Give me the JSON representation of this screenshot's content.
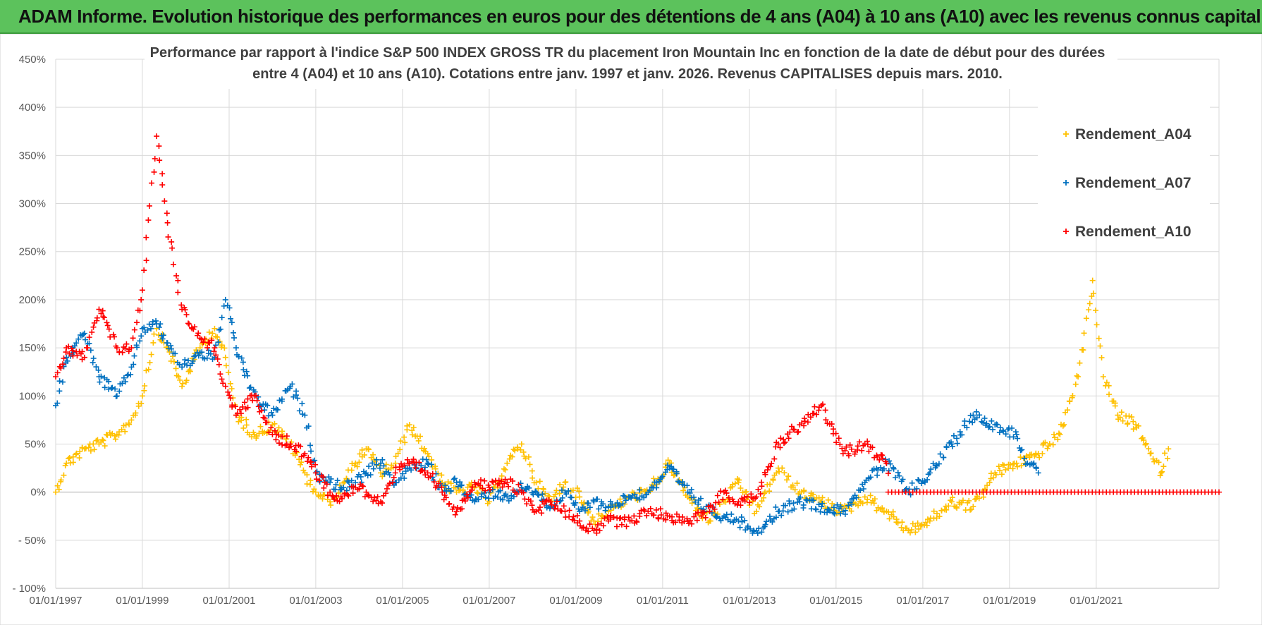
{
  "header": {
    "title": "ADAM Informe. Evolution historique des performances en euros pour des détentions de 4 ans (A04) à 10 ans (A10) avec les revenus connus capitalisés"
  },
  "chart_data": {
    "type": "scatter",
    "title_lines": [
      "Performance par rapport à l'indice S&P 500 INDEX GROSS TR  du placement Iron Mountain Inc en fonction de la date de début pour des durées",
      "entre 4 (A04) et 10 ans (A10). Cotations entre janv. 1997 et janv. 2026. Revenus CAPITALISES depuis mars. 2010."
    ],
    "xlabel": "",
    "ylabel": "",
    "x_ticks": [
      "01/01/1997",
      "01/01/1999",
      "01/01/2001",
      "01/01/2003",
      "01/01/2005",
      "01/01/2007",
      "01/01/2009",
      "01/01/2011",
      "01/01/2013",
      "01/01/2015",
      "01/01/2017",
      "01/01/2019",
      "01/01/2021"
    ],
    "xlim": [
      "1997-01-01",
      "2023-11-01"
    ],
    "y_ticks": [
      "450%",
      "400%",
      "350%",
      "300%",
      "250%",
      "200%",
      "150%",
      "100%",
      "50%",
      "0%",
      "- 50%",
      "- 100%"
    ],
    "ylim": [
      -100,
      450
    ],
    "grid": true,
    "legend_position": "top-right",
    "marker": "+",
    "series": [
      {
        "name": "Rendement_A04",
        "color": "#FFC000",
        "points": [
          [
            "1997-01-01",
            0
          ],
          [
            "1997-04-01",
            30
          ],
          [
            "1997-09-01",
            45
          ],
          [
            "1998-01-01",
            50
          ],
          [
            "1998-06-01",
            60
          ],
          [
            "1998-10-01",
            75
          ],
          [
            "1999-01-01",
            100
          ],
          [
            "1999-05-01",
            170
          ],
          [
            "1999-08-01",
            150
          ],
          [
            "1999-12-01",
            110
          ],
          [
            "2000-05-01",
            150
          ],
          [
            "2000-09-01",
            170
          ],
          [
            "2000-12-01",
            140
          ],
          [
            "2001-03-01",
            80
          ],
          [
            "2001-08-01",
            60
          ],
          [
            "2002-01-01",
            70
          ],
          [
            "2002-06-01",
            50
          ],
          [
            "2002-10-01",
            20
          ],
          [
            "2003-01-01",
            0
          ],
          [
            "2003-05-01",
            -10
          ],
          [
            "2003-08-01",
            5
          ],
          [
            "2003-12-01",
            30
          ],
          [
            "2004-03-01",
            45
          ],
          [
            "2004-07-01",
            20
          ],
          [
            "2004-11-01",
            30
          ],
          [
            "2005-03-01",
            70
          ],
          [
            "2005-08-01",
            40
          ],
          [
            "2005-12-01",
            10
          ],
          [
            "2006-04-01",
            0
          ],
          [
            "2006-09-01",
            5
          ],
          [
            "2007-01-01",
            -10
          ],
          [
            "2007-06-01",
            30
          ],
          [
            "2007-10-01",
            50
          ],
          [
            "2008-02-01",
            10
          ],
          [
            "2008-06-01",
            -10
          ],
          [
            "2008-10-01",
            10
          ],
          [
            "2009-02-01",
            -5
          ],
          [
            "2009-06-01",
            -30
          ],
          [
            "2009-10-01",
            -20
          ],
          [
            "2010-04-01",
            -5
          ],
          [
            "2010-09-01",
            0
          ],
          [
            "2011-03-01",
            30
          ],
          [
            "2011-08-01",
            -5
          ],
          [
            "2012-02-01",
            -30
          ],
          [
            "2012-06-01",
            -10
          ],
          [
            "2012-10-01",
            10
          ],
          [
            "2013-03-01",
            -20
          ],
          [
            "2013-09-01",
            25
          ],
          [
            "2014-03-01",
            0
          ],
          [
            "2014-09-01",
            -10
          ],
          [
            "2015-03-01",
            -20
          ],
          [
            "2015-09-01",
            -5
          ],
          [
            "2016-03-01",
            -20
          ],
          [
            "2016-09-01",
            -40
          ],
          [
            "2017-03-01",
            -30
          ],
          [
            "2017-09-01",
            -10
          ],
          [
            "2018-03-01",
            -15
          ],
          [
            "2018-09-01",
            20
          ],
          [
            "2019-03-01",
            30
          ],
          [
            "2019-09-01",
            40
          ],
          [
            "2020-03-01",
            60
          ],
          [
            "2020-08-01",
            120
          ],
          [
            "2020-12-01",
            220
          ],
          [
            "2021-03-01",
            120
          ],
          [
            "2021-07-01",
            80
          ],
          [
            "2021-12-01",
            70
          ],
          [
            "2022-04-01",
            40
          ],
          [
            "2022-07-01",
            20
          ],
          [
            "2022-09-01",
            45
          ]
        ]
      },
      {
        "name": "Rendement_A07",
        "color": "#0070C0",
        "points": [
          [
            "1997-01-01",
            90
          ],
          [
            "1997-04-01",
            140
          ],
          [
            "1997-09-01",
            165
          ],
          [
            "1998-01-01",
            120
          ],
          [
            "1998-06-01",
            100
          ],
          [
            "1998-10-01",
            130
          ],
          [
            "1999-01-01",
            170
          ],
          [
            "1999-05-01",
            175
          ],
          [
            "1999-08-01",
            155
          ],
          [
            "1999-12-01",
            130
          ],
          [
            "2000-05-01",
            145
          ],
          [
            "2000-09-01",
            140
          ],
          [
            "2000-12-01",
            200
          ],
          [
            "2001-03-01",
            150
          ],
          [
            "2001-08-01",
            100
          ],
          [
            "2002-01-01",
            80
          ],
          [
            "2002-06-01",
            110
          ],
          [
            "2002-10-01",
            80
          ],
          [
            "2003-01-01",
            20
          ],
          [
            "2003-05-01",
            10
          ],
          [
            "2003-08-01",
            5
          ],
          [
            "2003-12-01",
            10
          ],
          [
            "2004-03-01",
            20
          ],
          [
            "2004-07-01",
            30
          ],
          [
            "2004-11-01",
            10
          ],
          [
            "2005-03-01",
            25
          ],
          [
            "2005-08-01",
            30
          ],
          [
            "2005-12-01",
            0
          ],
          [
            "2006-04-01",
            10
          ],
          [
            "2006-09-01",
            -10
          ],
          [
            "2007-01-01",
            0
          ],
          [
            "2007-06-01",
            -5
          ],
          [
            "2007-10-01",
            5
          ],
          [
            "2008-02-01",
            0
          ],
          [
            "2008-06-01",
            -15
          ],
          [
            "2008-10-01",
            0
          ],
          [
            "2009-02-01",
            -20
          ],
          [
            "2009-06-01",
            -10
          ],
          [
            "2009-10-01",
            -15
          ],
          [
            "2010-04-01",
            -5
          ],
          [
            "2010-09-01",
            0
          ],
          [
            "2011-03-01",
            25
          ],
          [
            "2011-08-01",
            0
          ],
          [
            "2012-02-01",
            -20
          ],
          [
            "2012-06-01",
            -25
          ],
          [
            "2012-10-01",
            -30
          ],
          [
            "2013-03-01",
            -40
          ],
          [
            "2013-09-01",
            -20
          ],
          [
            "2014-03-01",
            -10
          ],
          [
            "2014-09-01",
            -15
          ],
          [
            "2015-03-01",
            -20
          ],
          [
            "2015-09-01",
            10
          ],
          [
            "2016-03-01",
            30
          ],
          [
            "2016-09-01",
            0
          ],
          [
            "2017-03-01",
            20
          ],
          [
            "2017-09-01",
            50
          ],
          [
            "2018-03-01",
            80
          ],
          [
            "2018-09-01",
            70
          ],
          [
            "2019-03-01",
            60
          ],
          [
            "2019-06-01",
            30
          ],
          [
            "2019-09-01",
            20
          ]
        ]
      },
      {
        "name": "Rendement_A10",
        "color": "#FF0000",
        "points": [
          [
            "1997-01-01",
            120
          ],
          [
            "1997-04-01",
            150
          ],
          [
            "1997-09-01",
            140
          ],
          [
            "1998-01-01",
            190
          ],
          [
            "1998-06-01",
            150
          ],
          [
            "1998-10-01",
            150
          ],
          [
            "1999-01-01",
            210
          ],
          [
            "1999-05-01",
            370
          ],
          [
            "1999-08-01",
            280
          ],
          [
            "1999-12-01",
            190
          ],
          [
            "2000-05-01",
            160
          ],
          [
            "2000-09-01",
            150
          ],
          [
            "2000-12-01",
            110
          ],
          [
            "2001-03-01",
            80
          ],
          [
            "2001-08-01",
            100
          ],
          [
            "2002-01-01",
            60
          ],
          [
            "2002-06-01",
            50
          ],
          [
            "2002-10-01",
            40
          ],
          [
            "2003-01-01",
            20
          ],
          [
            "2003-05-01",
            0
          ],
          [
            "2003-08-01",
            -5
          ],
          [
            "2003-12-01",
            5
          ],
          [
            "2004-03-01",
            0
          ],
          [
            "2004-07-01",
            -10
          ],
          [
            "2004-11-01",
            20
          ],
          [
            "2005-03-01",
            30
          ],
          [
            "2005-08-01",
            20
          ],
          [
            "2005-12-01",
            0
          ],
          [
            "2006-04-01",
            -20
          ],
          [
            "2006-09-01",
            10
          ],
          [
            "2007-01-01",
            5
          ],
          [
            "2007-06-01",
            10
          ],
          [
            "2007-10-01",
            0
          ],
          [
            "2008-02-01",
            -20
          ],
          [
            "2008-06-01",
            -10
          ],
          [
            "2008-10-01",
            -20
          ],
          [
            "2009-02-01",
            -30
          ],
          [
            "2009-06-01",
            -40
          ],
          [
            "2009-10-01",
            -30
          ],
          [
            "2010-04-01",
            -30
          ],
          [
            "2010-09-01",
            -20
          ],
          [
            "2011-03-01",
            -25
          ],
          [
            "2011-08-01",
            -30
          ],
          [
            "2012-02-01",
            -20
          ],
          [
            "2012-06-01",
            0
          ],
          [
            "2012-10-01",
            -10
          ],
          [
            "2013-03-01",
            -5
          ],
          [
            "2013-09-01",
            50
          ],
          [
            "2014-03-01",
            70
          ],
          [
            "2014-09-01",
            90
          ],
          [
            "2015-03-01",
            40
          ],
          [
            "2015-09-01",
            50
          ],
          [
            "2016-03-01",
            30
          ],
          [
            "2016-03-15",
            0
          ],
          [
            "2023-11-01",
            0
          ]
        ]
      }
    ]
  }
}
